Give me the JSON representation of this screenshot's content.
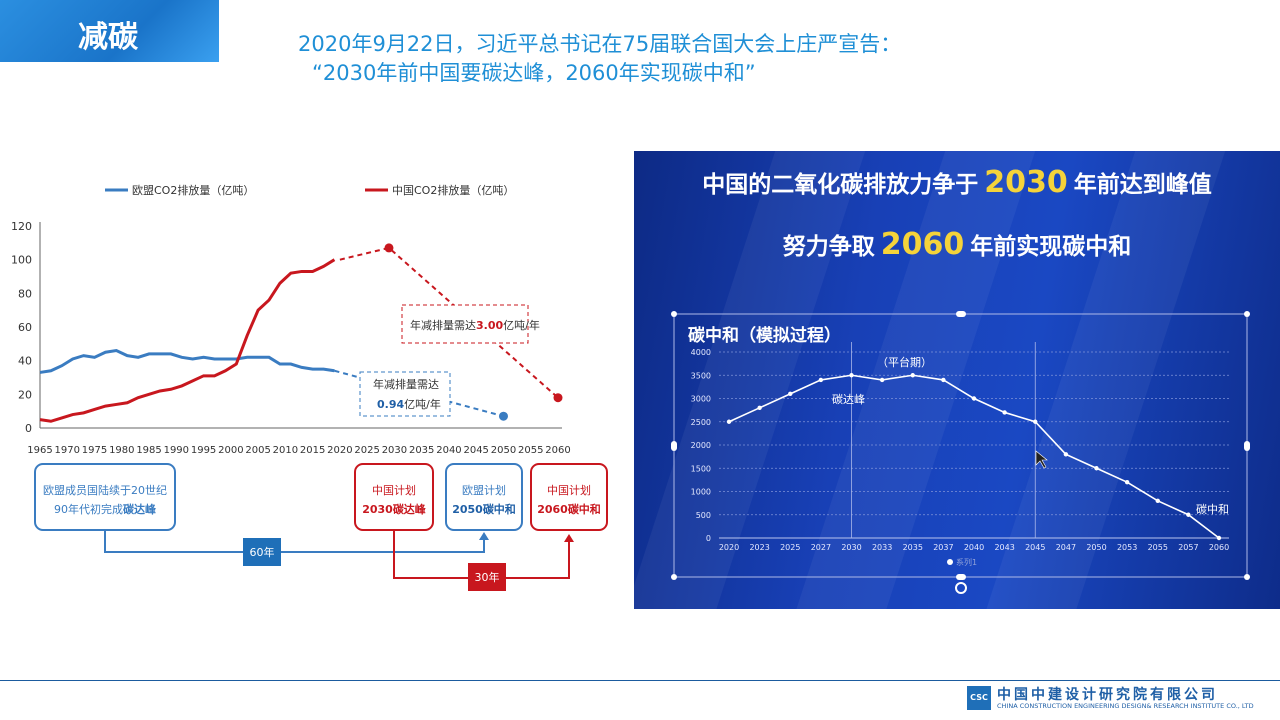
{
  "header": {
    "title": "减碳"
  },
  "quote": {
    "line1": "2020年9月22日，习近平总书记在75届联合国大会上庄严宣告：",
    "line2": "“2030年前中国要碳达峰，2060年实现碳中和”"
  },
  "left_chart": {
    "legend_eu": "欧盟CO2排放量（亿吨）",
    "legend_cn": "中国CO2排放量（亿吨）",
    "colors": {
      "eu": "#3a7cc1",
      "cn": "#c8171e"
    },
    "callout_cn_prefix": "年减排量需达",
    "callout_cn_value": "3.00",
    "callout_cn_suffix": "亿吨/年",
    "callout_eu_line1": "年减排量需达",
    "callout_eu_value": "0.94",
    "callout_eu_suffix": "亿吨/年",
    "box_eu_peak_1": "欧盟成员国陆续于20世纪",
    "box_eu_peak_2a": "90年代初完成",
    "box_eu_peak_2b": "碳达峰",
    "box_cn_2030_1": "中国计划",
    "box_cn_2030_2a": "2030",
    "box_cn_2030_2b": "碳达峰",
    "box_eu_2050_1": "欧盟计划",
    "box_eu_2050_2a": "2050",
    "box_eu_2050_2b": "碳中和",
    "box_cn_2060_1": "中国计划",
    "box_cn_2060_2a": "2060",
    "box_cn_2060_2b": "碳中和",
    "span_eu": "60年",
    "span_cn": "30年"
  },
  "chart_data": [
    {
      "type": "line",
      "x": [
        1965,
        1967,
        1969,
        1971,
        1973,
        1975,
        1977,
        1979,
        1981,
        1983,
        1985,
        1987,
        1989,
        1991,
        1993,
        1995,
        1997,
        1999,
        2001,
        2003,
        2005,
        2007,
        2009,
        2011,
        2013,
        2015,
        2017,
        2019
      ],
      "series": [
        {
          "name": "欧盟CO2排放量（亿吨）",
          "values": [
            33,
            34,
            37,
            41,
            43,
            42,
            45,
            46,
            43,
            42,
            44,
            44,
            44,
            42,
            41,
            42,
            41,
            41,
            41,
            42,
            42,
            42,
            38,
            38,
            36,
            35,
            35,
            34
          ]
        },
        {
          "name": "中国CO2排放量（亿吨）",
          "values": [
            5,
            4,
            6,
            8,
            9,
            11,
            13,
            14,
            15,
            18,
            20,
            22,
            23,
            25,
            28,
            31,
            31,
            34,
            38,
            55,
            70,
            76,
            86,
            92,
            93,
            93,
            96,
            100
          ]
        }
      ],
      "projections": [
        {
          "series": "中国CO2排放量（亿吨）",
          "points": [
            [
              2020,
              100
            ],
            [
              2029,
              107
            ],
            [
              2060,
              18
            ]
          ]
        },
        {
          "series": "欧盟CO2排放量（亿吨）",
          "points": [
            [
              2019,
              34
            ],
            [
              2050,
              7
            ]
          ]
        }
      ],
      "xticks": [
        1965,
        1970,
        1975,
        1980,
        1985,
        1990,
        1995,
        2000,
        2005,
        2010,
        2015,
        2020,
        2025,
        2030,
        2035,
        2040,
        2045,
        2050,
        2055,
        2060
      ],
      "yticks": [
        0,
        20,
        40,
        60,
        80,
        100,
        120
      ],
      "xlim": [
        1965,
        2060
      ],
      "ylim": [
        0,
        120
      ],
      "legend": "top"
    },
    {
      "type": "line",
      "title": "碳中和（模拟过程）",
      "categories": [
        "2020",
        "2023",
        "2025",
        "2027",
        "2030",
        "2033",
        "2035",
        "2037",
        "2040",
        "2043",
        "2045",
        "2047",
        "2050",
        "2053",
        "2055",
        "2057",
        "2060"
      ],
      "series": [
        {
          "name": "系列1",
          "values": [
            2500,
            2800,
            3100,
            3400,
            3500,
            3400,
            3500,
            3400,
            3000,
            2700,
            2500,
            1800,
            1500,
            1200,
            800,
            500,
            0
          ]
        }
      ],
      "yticks": [
        0,
        500,
        1000,
        1500,
        2000,
        2500,
        3000,
        3500,
        4000
      ],
      "ylim": [
        0,
        4000
      ],
      "annotations": [
        "（平台期）",
        "碳达峰",
        "碳中和"
      ]
    }
  ],
  "right_panel": {
    "line1_pre": "中国的二氧化碳排放力争于",
    "line1_num": "2030",
    "line1_post": "年前达到峰值",
    "line2_pre": "努力争取",
    "line2_num": "2060",
    "line2_post": "年前实现碳中和",
    "chart_title": "碳中和（模拟过程）",
    "ann_platform": "（平台期）",
    "ann_peak": "碳达峰",
    "ann_neutral": "碳中和",
    "legend_label": "系列1"
  },
  "footer": {
    "company_cn": "中国中建设计研究院有限公司",
    "company_en": "CHINA CONSTRUCTION ENGINEERING DESIGN& RESEARCH INSTITUTE CO., LTD",
    "logo_text": "CSC"
  }
}
